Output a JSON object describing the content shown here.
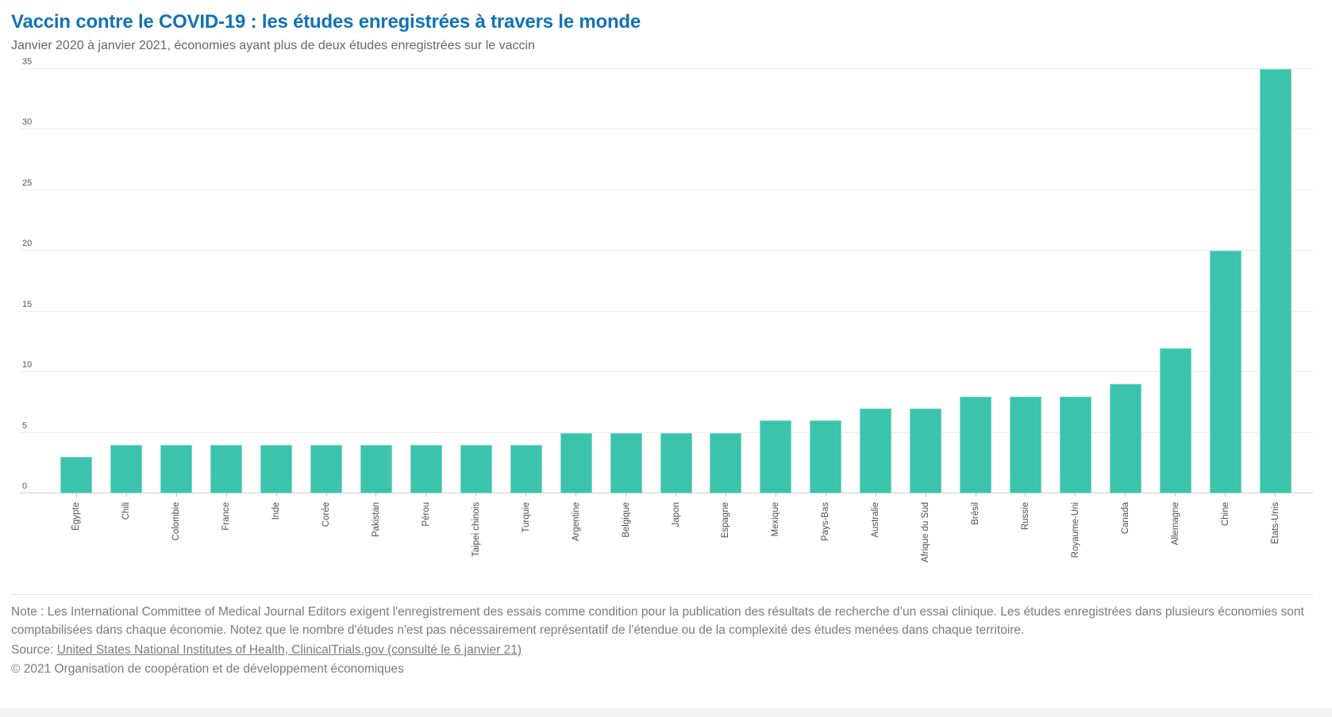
{
  "header": {
    "title": "Vaccin contre le COVID-19 : les études enregistrées à travers le monde",
    "subtitle": "Janvier 2020 à janvier 2021, économies ayant plus de deux études enregistrées sur le vaccin"
  },
  "chart_data": {
    "type": "bar",
    "title": "Vaccin contre le COVID-19 : les études enregistrées à travers le monde",
    "categories": [
      "Égypte",
      "Chili",
      "Colombie",
      "France",
      "Inde",
      "Corée",
      "Pakistan",
      "Pérou",
      "Taipei chinois",
      "Turquie",
      "Argentine",
      "Belgique",
      "Japon",
      "Espagne",
      "Mexique",
      "Pays-Bas",
      "Australie",
      "Afrique du Sud",
      "Brésil",
      "Russie",
      "Royaume-Uni",
      "Canada",
      "Allemagne",
      "Chine",
      "États-Unis"
    ],
    "values": [
      3,
      4,
      4,
      4,
      4,
      4,
      4,
      4,
      4,
      4,
      5,
      5,
      5,
      5,
      6,
      6,
      7,
      7,
      8,
      8,
      8,
      9,
      12,
      20,
      35
    ],
    "xlabel": "",
    "ylabel": "",
    "ylim": [
      0,
      35
    ],
    "yticks": [
      0,
      5,
      10,
      15,
      20,
      25,
      30,
      35
    ],
    "grid": true,
    "legend": "none",
    "bar_color": "#3cc3ac"
  },
  "footer": {
    "note": "Note : Les International Committee of Medical Journal Editors exigent l'enregistrement des essais comme condition pour la publication des résultats de recherche d’un essai clinique. Les études enregistrées dans plusieurs économies sont comptabilisées dans chaque économie. Notez que le nombre d'études n'est pas nécessairement représentatif de l'étendue ou de la complexité des études menées dans chaque territoire.",
    "source_label": "Source:",
    "source_link": "United States National Institutes of Health, ClinicalTrials.gov (consulté le 6 janvier 21)",
    "copyright": "© 2021 Organisation de coopération et de développement économiques"
  }
}
